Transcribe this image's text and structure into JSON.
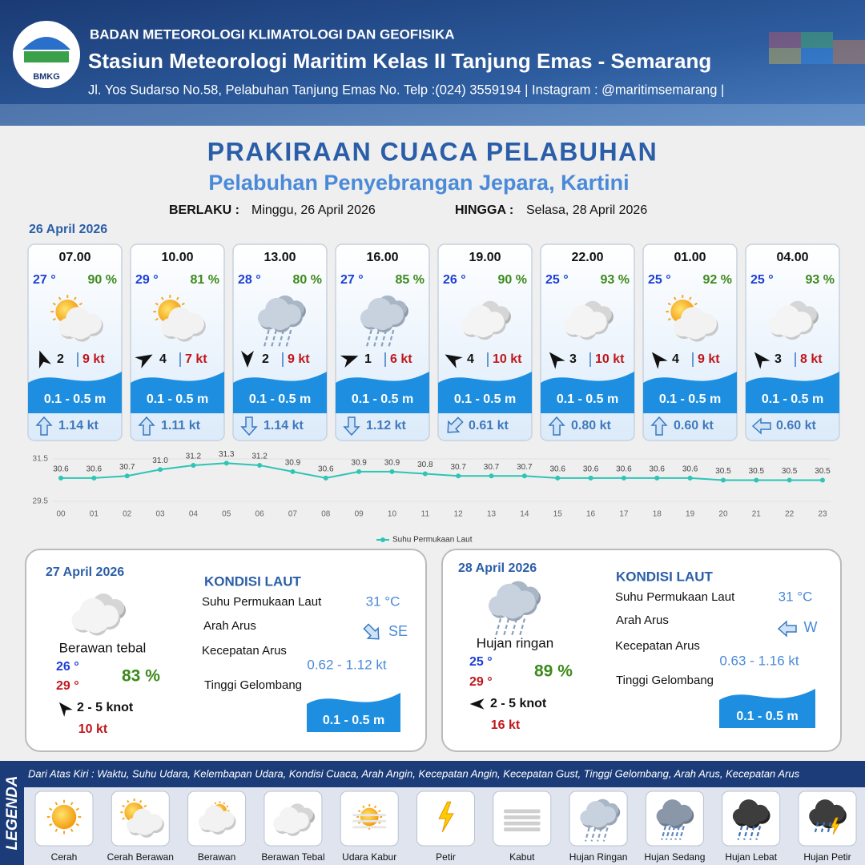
{
  "header": {
    "logo": "BMKG",
    "organization": "BADAN METEOROLOGI KLIMATOLOGI DAN GEOFISIKA",
    "station": "Stasiun Meteorologi Maritim Kelas II Tanjung Emas - Semarang",
    "address": "Jl. Yos Sudarso No.58, Pelabuhan Tanjung Emas No. Telp :(024) 3559194 | Instagram : @maritimsemarang |"
  },
  "title": "PRAKIRAAN CUACA PELABUHAN",
  "subtitle": "Pelabuhan Penyebrangan Jepara, Kartini",
  "validity": {
    "from_label": "BERLAKU :",
    "from": "Minggu, 26 April 2026",
    "to_label": "HINGGA :",
    "to": "Selasa, 28 April 2026"
  },
  "day1_date": "26 April 2026",
  "forecasts": [
    {
      "time": "07.00",
      "temp": "27 °",
      "humidity": "90 %",
      "wind": "2",
      "gust": "9 kt",
      "wave": "0.1 - 0.5 m",
      "current": "1.14 kt"
    },
    {
      "time": "10.00",
      "temp": "29 °",
      "humidity": "81 %",
      "wind": "4",
      "gust": "7 kt",
      "wave": "0.1 - 0.5 m",
      "current": "1.11 kt"
    },
    {
      "time": "13.00",
      "temp": "28 °",
      "humidity": "80 %",
      "wind": "2",
      "gust": "9 kt",
      "wave": "0.1 - 0.5 m",
      "current": "1.14 kt"
    },
    {
      "time": "16.00",
      "temp": "27 °",
      "humidity": "85 %",
      "wind": "1",
      "gust": "6 kt",
      "wave": "0.1 - 0.5 m",
      "current": "1.12 kt"
    },
    {
      "time": "19.00",
      "temp": "26 °",
      "humidity": "90 %",
      "wind": "4",
      "gust": "10 kt",
      "wave": "0.1 - 0.5 m",
      "current": "0.61 kt"
    },
    {
      "time": "22.00",
      "temp": "25 °",
      "humidity": "93 %",
      "wind": "3",
      "gust": "10 kt",
      "wave": "0.1 - 0.5 m",
      "current": "0.80 kt"
    },
    {
      "time": "01.00",
      "temp": "25 °",
      "humidity": "92 %",
      "wind": "4",
      "gust": "9 kt",
      "wave": "0.1 - 0.5 m",
      "current": "0.60 kt"
    },
    {
      "time": "04.00",
      "temp": "25 °",
      "humidity": "93 %",
      "wind": "3",
      "gust": "8 kt",
      "wave": "0.1 - 0.5 m",
      "current": "0.60 kt"
    }
  ],
  "chart_data": {
    "type": "line",
    "categories": [
      "00",
      "01",
      "02",
      "03",
      "04",
      "05",
      "06",
      "07",
      "08",
      "09",
      "10",
      "11",
      "12",
      "13",
      "14",
      "15",
      "16",
      "17",
      "18",
      "19",
      "20",
      "21",
      "22",
      "23"
    ],
    "series": [
      {
        "name": "Suhu Permukaan Laut",
        "color": "#2ec4b6",
        "values": [
          30.6,
          30.6,
          30.7,
          31.0,
          31.2,
          31.3,
          31.2,
          30.9,
          30.6,
          30.9,
          30.9,
          30.8,
          30.7,
          30.7,
          30.7,
          30.6,
          30.6,
          30.6,
          30.6,
          30.6,
          30.5,
          30.5,
          30.5,
          30.5
        ],
        "value_labels": [
          "30.6",
          "30.6",
          "30.7",
          "31.0",
          "31.2",
          "31.3",
          "31.2",
          "30.9",
          "30.6",
          "30.9",
          "30.9",
          "30.8",
          "30.7",
          "30.7",
          "30.7",
          "30.6",
          "30.6",
          "30.6",
          "30.6",
          "30.6",
          "30.5",
          "30.5",
          "30.5",
          "30.5"
        ]
      }
    ],
    "ylim": [
      29.5,
      31.5
    ],
    "yticks": [
      29.5,
      31.5
    ]
  },
  "days": [
    {
      "date": "27 April 2026",
      "condition": "Berawan tebal",
      "temp_min": "26 °",
      "temp_max": "29 °",
      "humidity": "83 %",
      "wind": "2  - 5 knot",
      "gust": "10 kt",
      "sea_title": "KONDISI LAUT",
      "sst_label": "Suhu Permukaan Laut",
      "sst": "31 °C",
      "current_dir_label": "Arah Arus",
      "current_dir": "SE",
      "current_speed_label": "Kecepatan Arus",
      "current_speed": "0.62 - 1.12 kt",
      "wave_label": "Tinggi Gelombang",
      "wave": "0.1 - 0.5 m"
    },
    {
      "date": "28 April 2026",
      "condition": "Hujan ringan",
      "temp_min": "25 °",
      "temp_max": "29 °",
      "humidity": "89 %",
      "wind": "2  - 5 knot",
      "gust": "16 kt",
      "sea_title": "KONDISI LAUT",
      "sst_label": "Suhu Permukaan Laut",
      "sst": "31 °C",
      "current_dir_label": "Arah Arus",
      "current_dir": "W",
      "current_speed_label": "Kecepatan Arus",
      "current_speed": "0.63 - 1.16 kt",
      "wave_label": "Tinggi Gelombang",
      "wave": "0.1 - 0.5 m"
    }
  ],
  "legend": {
    "title": "LEGENDA",
    "description": "Dari Atas Kiri : Waktu, Suhu Udara, Kelembapan Udara, Kondisi Cuaca, Arah Angin, Kecepatan Angin, Kecepatan Gust, Tinggi Gelombang, Arah Arus, Kecepatan Arus",
    "items": [
      "Cerah",
      "Cerah Berawan",
      "Berawan",
      "Berawan Tebal",
      "Udara Kabur",
      "Petir",
      "Kabut",
      "Hujan Ringan",
      "Hujan Sedang",
      "Hujan Lebat",
      "Hujan Petir"
    ]
  }
}
